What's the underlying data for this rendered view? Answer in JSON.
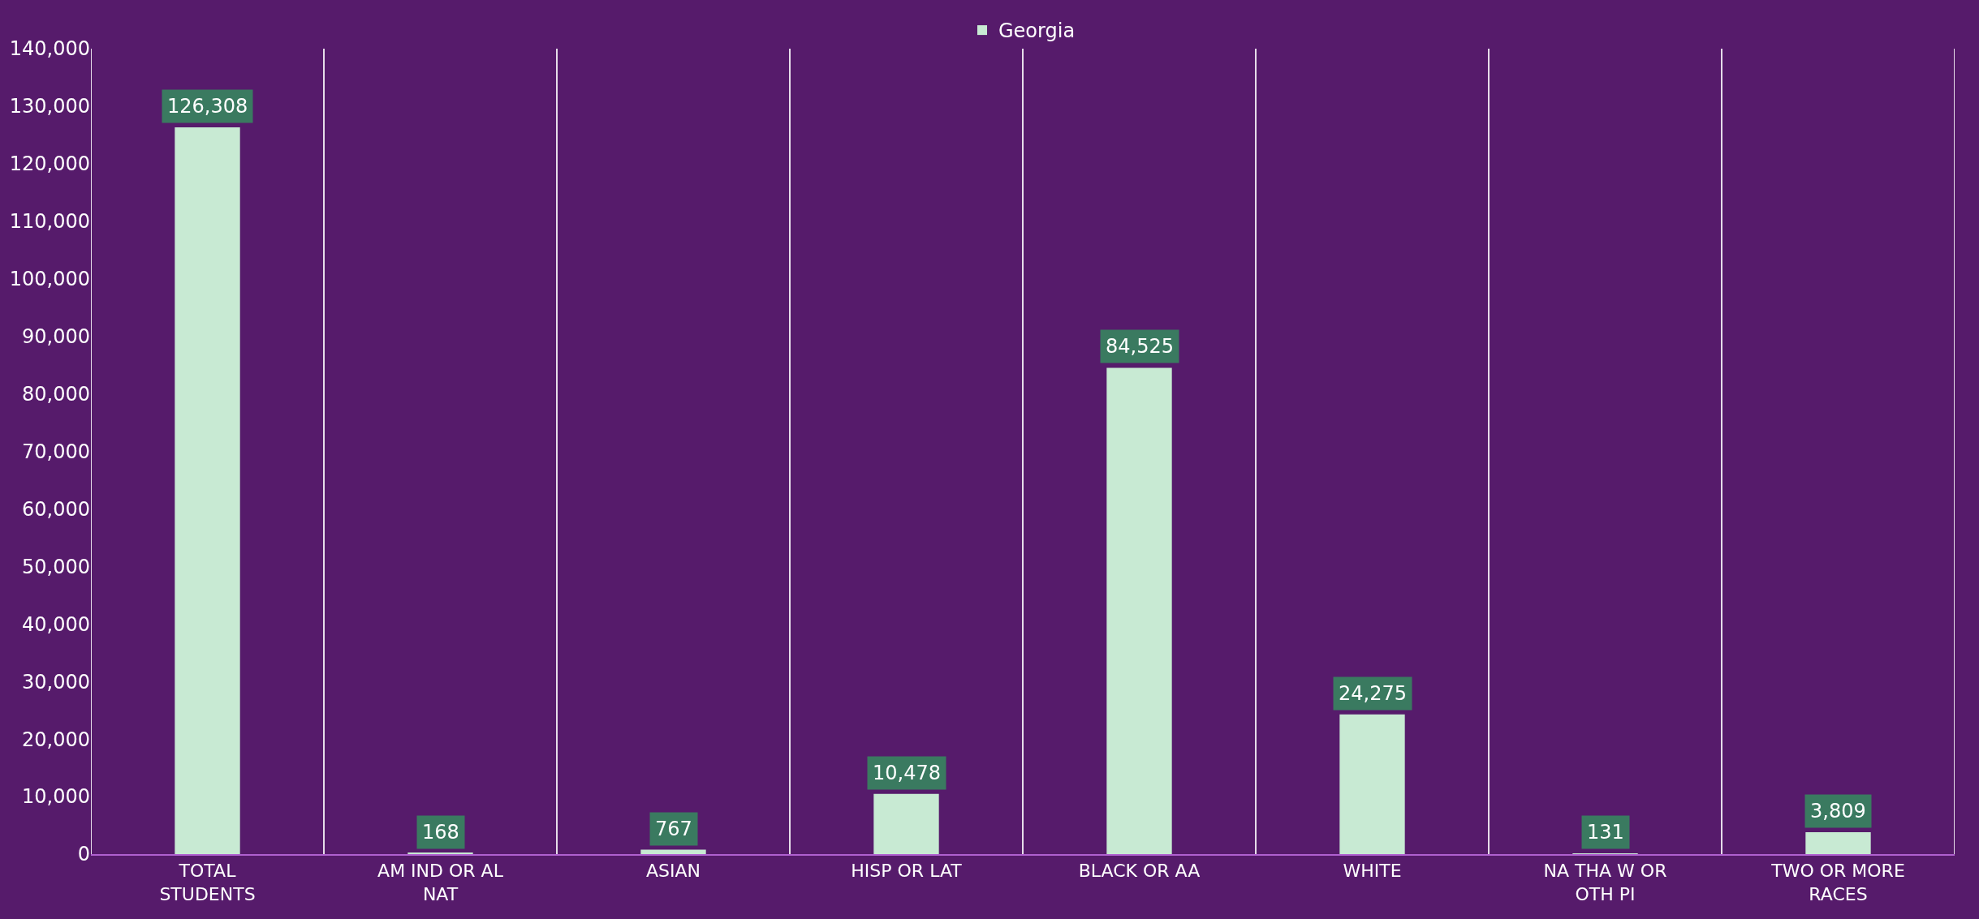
{
  "chart_data": {
    "type": "bar",
    "categories": [
      "TOTAL STUDENTS",
      "AM IND OR AL NAT",
      "ASIAN",
      "HISP OR LAT",
      "BLACK OR AA",
      "WHITE",
      "NA THA W OR OTH PI",
      "TWO OR MORE RACES"
    ],
    "series": [
      {
        "name": "Georgia",
        "color": "#c8ead3",
        "values": [
          126308,
          168,
          767,
          10478,
          84525,
          24275,
          131,
          3809
        ],
        "value_labels": [
          "126,308",
          "168",
          "767",
          "10,478",
          "84,525",
          "24,275",
          "131",
          "3,809"
        ]
      }
    ],
    "ylim": [
      0,
      140000
    ],
    "yticks": [
      {
        "value": 0,
        "label": "0"
      },
      {
        "value": 10000,
        "label": "10,000"
      },
      {
        "value": 20000,
        "label": "20,000"
      },
      {
        "value": 30000,
        "label": "30,000"
      },
      {
        "value": 40000,
        "label": "40,000"
      },
      {
        "value": 50000,
        "label": "50,000"
      },
      {
        "value": 60000,
        "label": "60,000"
      },
      {
        "value": 70000,
        "label": "70,000"
      },
      {
        "value": 80000,
        "label": "80,000"
      },
      {
        "value": 90000,
        "label": "90,000"
      },
      {
        "value": 100000,
        "label": "100,000"
      },
      {
        "value": 110000,
        "label": "110,000"
      },
      {
        "value": 120000,
        "label": "120,000"
      },
      {
        "value": 130000,
        "label": "130,000"
      },
      {
        "value": 140000,
        "label": "140,000"
      }
    ],
    "grid": "x",
    "legend": "top"
  }
}
